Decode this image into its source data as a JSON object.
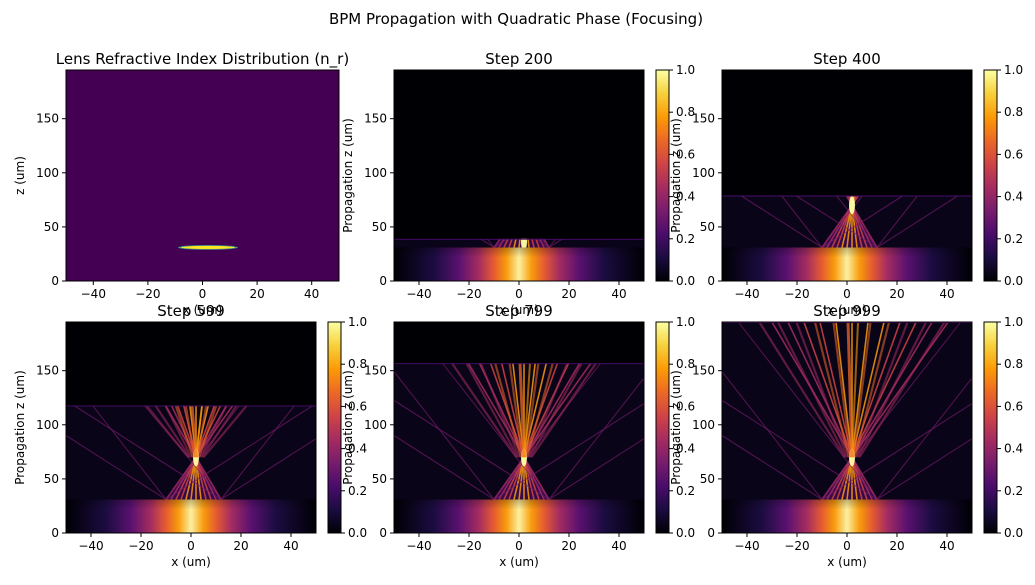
{
  "figure": {
    "suptitle": "BPM Propagation with Quadratic Phase (Focusing)"
  },
  "colors": {
    "viridis_bg": "#440154",
    "lens_fill": "#fde725",
    "lens_edge": "#3b9b8a",
    "inferno_stops": [
      "#000004",
      "#1b0c41",
      "#4a0c6b",
      "#781c6d",
      "#a52c60",
      "#cf4446",
      "#ed6925",
      "#fb9b06",
      "#f7d13d",
      "#fcffa4"
    ]
  },
  "chart_data": [
    {
      "type": "heatmap",
      "title": "Lens Refractive Index Distribution (n_r)",
      "xlabel": "x (um)",
      "ylabel": "z (um)",
      "xlim": [
        -50,
        50
      ],
      "ylim": [
        0,
        195
      ],
      "xticks": [
        -40,
        -20,
        0,
        20,
        40
      ],
      "yticks": [
        0,
        50,
        100,
        150
      ],
      "colormap": "viridis",
      "lens": {
        "z_center": 31,
        "x_range": [
          -9,
          13
        ],
        "half_thickness": 1.6
      }
    },
    {
      "type": "heatmap",
      "title": "Step 200",
      "xlabel": "x (um)",
      "ylabel": "Propagation z (um)",
      "xlim": [
        -50,
        50
      ],
      "ylim": [
        0,
        195
      ],
      "xticks": [
        -40,
        -20,
        0,
        20,
        40
      ],
      "yticks": [
        0,
        50,
        100,
        150
      ],
      "colormap": "inferno",
      "propagated_z": 39,
      "colorbar": {
        "ticks": [
          "0.0",
          "0.2",
          "0.4",
          "0.6",
          "0.8",
          "1.0"
        ],
        "range": [
          0,
          1
        ]
      }
    },
    {
      "type": "heatmap",
      "title": "Step 400",
      "xlabel": "x (um)",
      "ylabel": "Propagation z (um)",
      "xlim": [
        -50,
        50
      ],
      "ylim": [
        0,
        195
      ],
      "xticks": [
        -40,
        -20,
        0,
        20,
        40
      ],
      "yticks": [
        0,
        50,
        100,
        150
      ],
      "colormap": "inferno",
      "propagated_z": 79,
      "colorbar": {
        "ticks": [
          "0.0",
          "0.2",
          "0.4",
          "0.6",
          "0.8",
          "1.0"
        ],
        "range": [
          0,
          1
        ]
      }
    },
    {
      "type": "heatmap",
      "title": "Step 599",
      "xlabel": "x (um)",
      "ylabel": "Propagation z (um)",
      "xlim": [
        -50,
        50
      ],
      "ylim": [
        0,
        195
      ],
      "xticks": [
        -40,
        -20,
        0,
        20,
        40
      ],
      "yticks": [
        0,
        50,
        100,
        150
      ],
      "colormap": "inferno",
      "propagated_z": 118,
      "colorbar": {
        "ticks": [
          "0.0",
          "0.2",
          "0.4",
          "0.6",
          "0.8",
          "1.0"
        ],
        "range": [
          0,
          1
        ]
      }
    },
    {
      "type": "heatmap",
      "title": "Step 799",
      "xlabel": "x (um)",
      "ylabel": "Propagation z (um)",
      "xlim": [
        -50,
        50
      ],
      "ylim": [
        0,
        195
      ],
      "xticks": [
        -40,
        -20,
        0,
        20,
        40
      ],
      "yticks": [
        0,
        50,
        100,
        150
      ],
      "colormap": "inferno",
      "propagated_z": 157,
      "colorbar": {
        "ticks": [
          "0.0",
          "0.2",
          "0.4",
          "0.6",
          "0.8",
          "1.0"
        ],
        "range": [
          0,
          1
        ]
      }
    },
    {
      "type": "heatmap",
      "title": "Step 999",
      "xlabel": "x (um)",
      "ylabel": "Propagation z (um)",
      "xlim": [
        -50,
        50
      ],
      "ylim": [
        0,
        195
      ],
      "xticks": [
        -40,
        -20,
        0,
        20,
        40
      ],
      "yticks": [
        0,
        50,
        100,
        150
      ],
      "colormap": "inferno",
      "propagated_z": 195,
      "colorbar": {
        "ticks": [
          "0.0",
          "0.2",
          "0.4",
          "0.6",
          "0.8",
          "1.0"
        ],
        "range": [
          0,
          1
        ]
      }
    }
  ]
}
